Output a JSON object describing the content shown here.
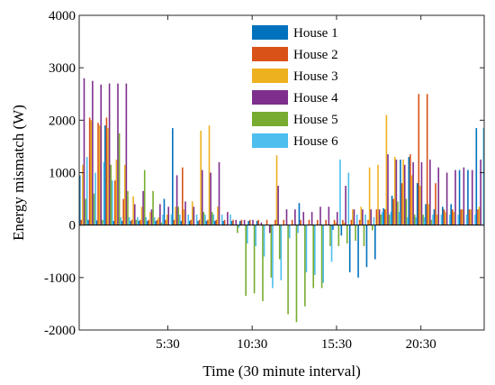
{
  "chart_data": {
    "type": "bar",
    "xlabel": "Time (30 minute interval)",
    "ylabel": "Energy mismatch (W)",
    "ylim": [
      -2000,
      4000
    ],
    "yticks": [
      "-2000",
      "-1000",
      "0",
      "1000",
      "2000",
      "3000",
      "4000"
    ],
    "xticks": [
      "5:30",
      "10:30",
      "15:30",
      "20:30"
    ],
    "xtick_slots": [
      11,
      21,
      31,
      41
    ],
    "slots": 48,
    "grid": false,
    "legend_position": "top-center",
    "series": [
      {
        "name": "House 1",
        "color": "#0072BD",
        "values": [
          950,
          100,
          90,
          1900,
          80,
          80,
          80,
          80,
          80,
          80,
          500,
          1850,
          80,
          80,
          80,
          80,
          80,
          80,
          80,
          80,
          80,
          80,
          0,
          0,
          0,
          0,
          420,
          0,
          0,
          0,
          -90,
          -200,
          -900,
          -1000,
          -800,
          -650,
          320,
          560,
          1250,
          1300,
          800,
          400,
          300,
          350,
          400,
          1050,
          1050,
          1850
        ]
      },
      {
        "name": "House 2",
        "color": "#D95319",
        "values": [
          100,
          2050,
          1950,
          2050,
          850,
          500,
          100,
          100,
          100,
          100,
          100,
          100,
          1100,
          100,
          100,
          100,
          100,
          100,
          100,
          100,
          100,
          100,
          100,
          100,
          100,
          100,
          100,
          100,
          100,
          100,
          100,
          100,
          100,
          100,
          100,
          300,
          300,
          500,
          800,
          1350,
          2500,
          2500,
          800,
          300,
          300,
          300,
          300,
          300
        ]
      },
      {
        "name": "House 3",
        "color": "#EDB120",
        "values": [
          1150,
          2000,
          1900,
          1850,
          1250,
          1150,
          550,
          350,
          250,
          150,
          200,
          350,
          300,
          450,
          1800,
          1900,
          350,
          0,
          0,
          0,
          0,
          0,
          0,
          1330,
          0,
          0,
          0,
          0,
          0,
          0,
          50,
          50,
          300,
          350,
          1100,
          1150,
          2100,
          1300,
          1250,
          950,
          750,
          400,
          200,
          250,
          250,
          300,
          300,
          350
        ]
      },
      {
        "name": "House 4",
        "color": "#7E2F8E",
        "values": [
          2800,
          2750,
          2680,
          2700,
          2700,
          2700,
          400,
          650,
          300,
          400,
          350,
          950,
          450,
          350,
          1050,
          1000,
          1200,
          250,
          100,
          100,
          100,
          50,
          -150,
          750,
          300,
          300,
          250,
          250,
          350,
          350,
          250,
          750,
          300,
          300,
          300,
          300,
          1350,
          1250,
          1150,
          1200,
          1200,
          1250,
          1100,
          1000,
          1050,
          1100,
          1050,
          1250
        ]
      },
      {
        "name": "House 5",
        "color": "#77AC30",
        "values": [
          500,
          600,
          100,
          1150,
          1750,
          650,
          100,
          1050,
          650,
          50,
          0,
          350,
          0,
          0,
          250,
          250,
          0,
          0,
          -150,
          -1350,
          -1300,
          -1450,
          -1000,
          -650,
          -1700,
          -1850,
          -1550,
          -1200,
          -1200,
          -400,
          -400,
          -350,
          -300,
          -400,
          -100,
          200,
          200,
          450,
          500,
          200,
          200,
          100,
          0,
          0,
          0,
          0,
          0,
          0
        ]
      },
      {
        "name": "House 6",
        "color": "#4DBEEE",
        "values": [
          1300,
          1000,
          1200,
          850,
          150,
          150,
          150,
          150,
          150,
          200,
          200,
          200,
          200,
          200,
          200,
          200,
          200,
          200,
          -50,
          -350,
          -400,
          -600,
          -1200,
          -1050,
          -250,
          -150,
          -900,
          -950,
          -1100,
          -700,
          1250,
          1000,
          200,
          200,
          150,
          250,
          250,
          250,
          150,
          150,
          150,
          200,
          200,
          200,
          200,
          200,
          200,
          1850
        ]
      }
    ]
  }
}
